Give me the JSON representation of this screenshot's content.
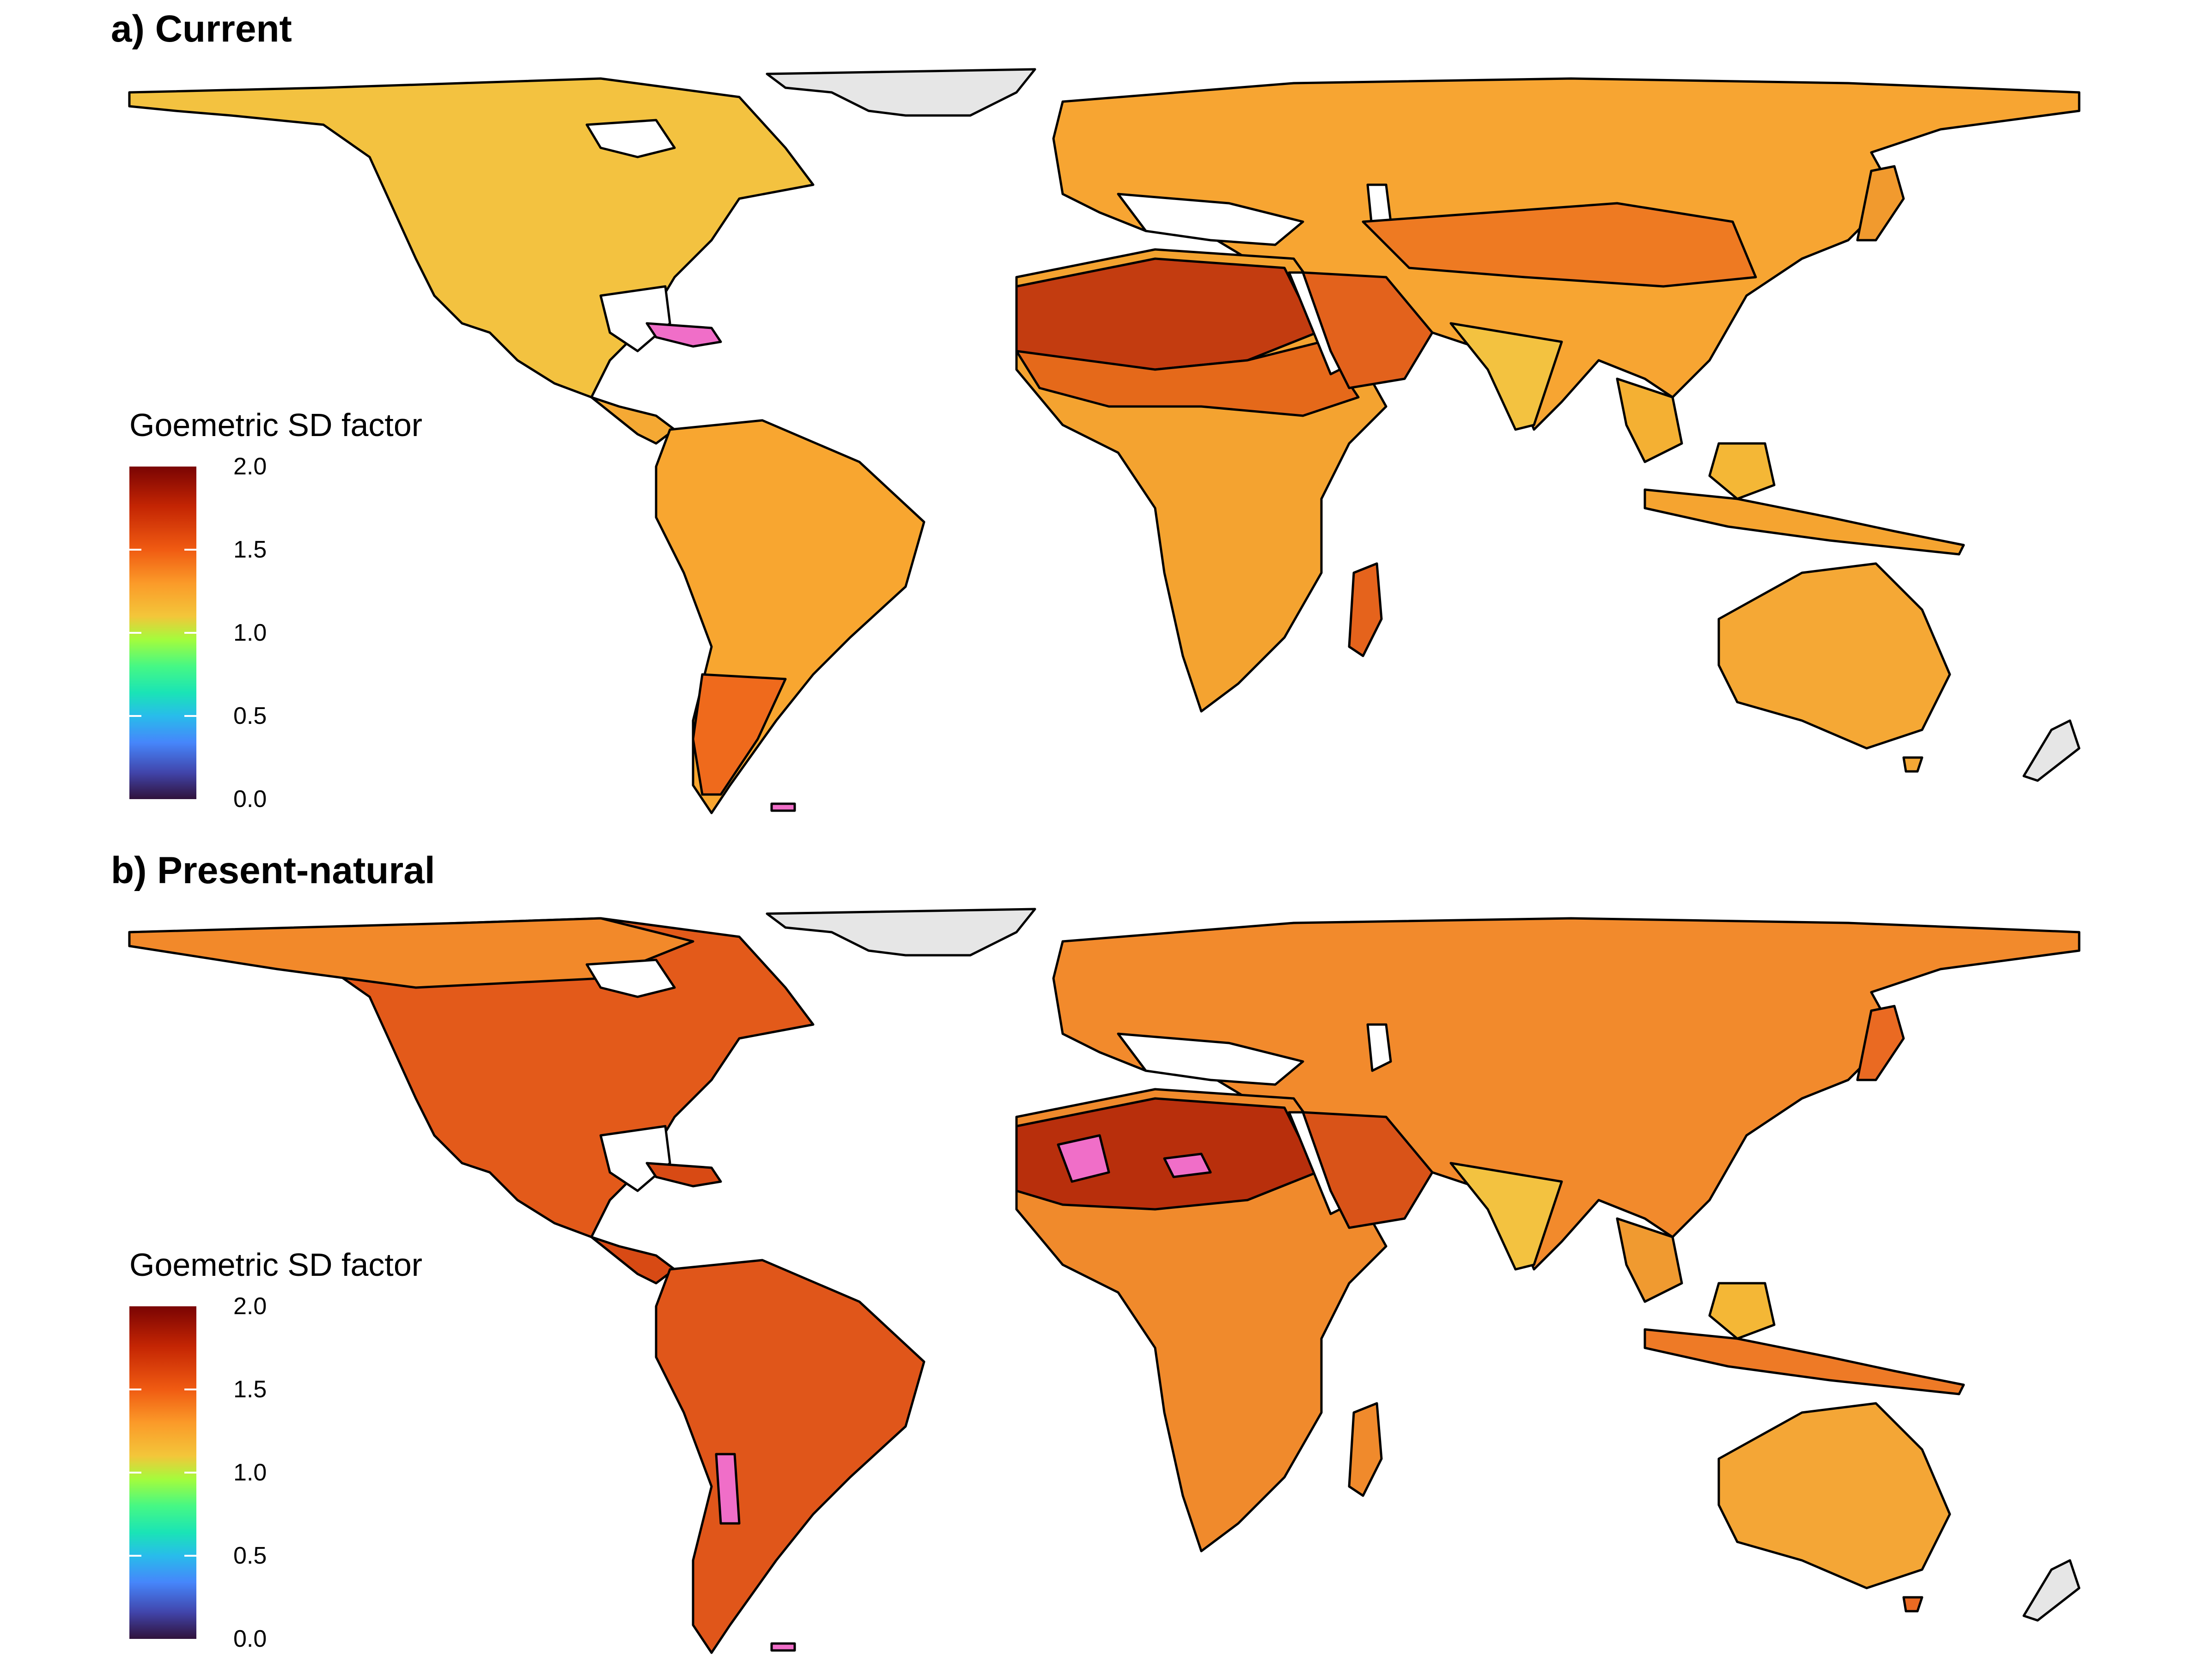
{
  "panels": [
    {
      "title": "a) Current",
      "legend": {
        "title": "Goemetric SD factor",
        "ticks": [
          "2.0",
          "1.5",
          "1.0",
          "0.5",
          "0.0"
        ]
      }
    },
    {
      "title": "b) Present-natural",
      "legend": {
        "title": "Goemetric SD factor",
        "ticks": [
          "2.0",
          "1.5",
          "1.0",
          "0.5",
          "0.0"
        ]
      }
    }
  ],
  "scale": {
    "min": 0.0,
    "max": 2.0,
    "colors": {
      "low": "#30123b",
      "mid": "#a4fc3c",
      "high": "#7a0403",
      "out_of_range": "#f06ec8",
      "no_data": "#e6e6e6",
      "coastline": "#000000"
    }
  }
}
